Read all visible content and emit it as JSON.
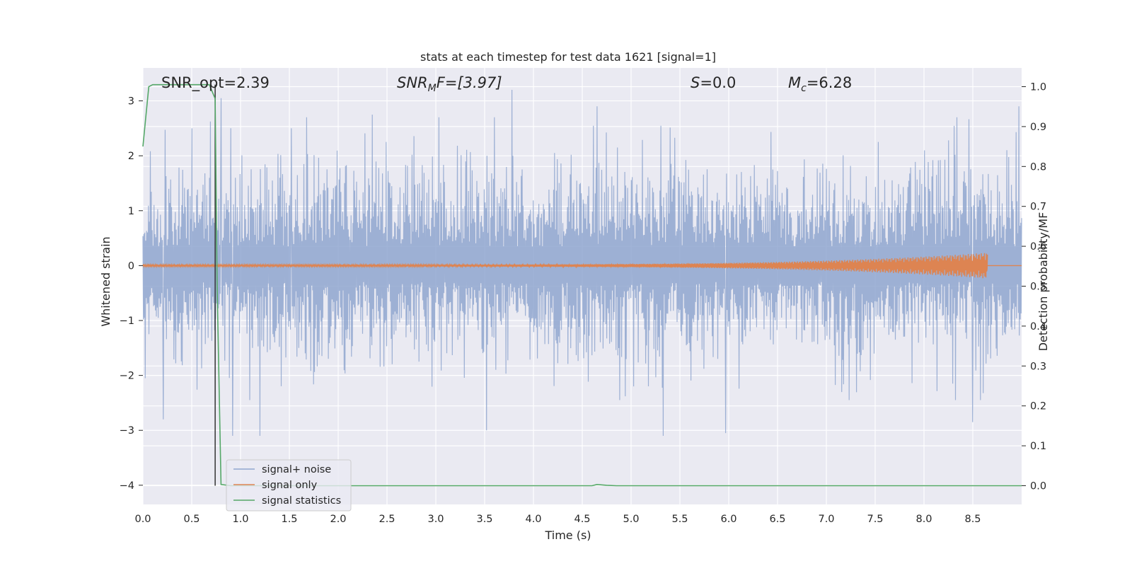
{
  "chart_data": {
    "type": "line",
    "title": "stats at each timestep for test data 1621 [signal=1]",
    "xlabel": "Time (s)",
    "ylabel": "Whitened strain",
    "ylabel_right": "Detection probability/MF",
    "xlim": [
      0.0,
      9.0
    ],
    "ylim": [
      -4.35,
      3.6
    ],
    "ylim_right": [
      -0.047,
      1.047
    ],
    "grid": true,
    "legend_position": "lower-left",
    "x_ticks": [
      "0.0",
      "0.5",
      "1.0",
      "1.5",
      "2.0",
      "2.5",
      "3.0",
      "3.5",
      "4.0",
      "4.5",
      "5.0",
      "5.5",
      "6.0",
      "6.5",
      "7.0",
      "7.5",
      "8.0",
      "8.5"
    ],
    "y_ticks": [
      "−4",
      "−3",
      "−2",
      "−1",
      "0",
      "1",
      "2",
      "3"
    ],
    "y_ticks_right": [
      "0.0",
      "0.1",
      "0.2",
      "0.3",
      "0.4",
      "0.5",
      "0.6",
      "0.7",
      "0.8",
      "0.9",
      "1.0"
    ],
    "annotations": {
      "snr_opt": "SNR_opt=2.39",
      "snr_mf_prefix": "SNR",
      "snr_mf_sub": "M",
      "snr_mf_suffix": "F=[3.97]",
      "s_prefix": "S",
      "s_suffix": "=0.0",
      "mc_prefix": "M",
      "mc_sub": "c",
      "mc_suffix": "=6.28"
    },
    "series": [
      {
        "name": "signal+ noise",
        "color": "#8fa6cf",
        "axis": "left",
        "x_range": [
          0.0,
          9.0
        ],
        "envelope_upper_typical": 1.9,
        "envelope_lower_typical": -1.6,
        "peaks": [
          {
            "x": 0.21,
            "y": -2.8
          },
          {
            "x": 0.5,
            "y": 2.5
          },
          {
            "x": 0.8,
            "y": 3.05
          },
          {
            "x": 0.92,
            "y": -3.1
          },
          {
            "x": 1.2,
            "y": -3.1
          },
          {
            "x": 1.52,
            "y": 2.5
          },
          {
            "x": 2.35,
            "y": 2.75
          },
          {
            "x": 3.52,
            "y": -3.0
          },
          {
            "x": 3.78,
            "y": 3.2
          },
          {
            "x": 4.65,
            "y": 2.9
          },
          {
            "x": 5.33,
            "y": -3.1
          },
          {
            "x": 5.97,
            "y": -3.05
          },
          {
            "x": 8.5,
            "y": -2.85
          },
          {
            "x": 8.97,
            "y": 2.9
          }
        ]
      },
      {
        "name": "signal only",
        "color": "#dd8452",
        "axis": "left",
        "x_range": [
          0.0,
          8.65
        ],
        "amplitude_end": 0.22
      },
      {
        "name": "signal statistics",
        "color": "#55a868",
        "axis": "right",
        "x": [
          0.0,
          0.06,
          0.1,
          0.3,
          0.55,
          0.68,
          0.74,
          0.76,
          0.8,
          0.9,
          4.6,
          4.65,
          4.75,
          4.85,
          9.0
        ],
        "y": [
          0.85,
          1.0,
          1.005,
          1.005,
          1.005,
          1.005,
          0.97,
          0.5,
          0.003,
          0.0,
          0.0,
          0.003,
          0.001,
          0.0,
          0.0
        ]
      }
    ],
    "vertical_marker": {
      "x": 0.74,
      "color": "#333333"
    }
  },
  "legend": {
    "entries": [
      {
        "label": "signal+ noise",
        "color": "#8fa6cf"
      },
      {
        "label": "signal only",
        "color": "#dd8452"
      },
      {
        "label": "signal statistics",
        "color": "#55a868"
      }
    ]
  },
  "colors": {
    "plot_background": "#eaeaf2",
    "grid": "#ffffff"
  }
}
